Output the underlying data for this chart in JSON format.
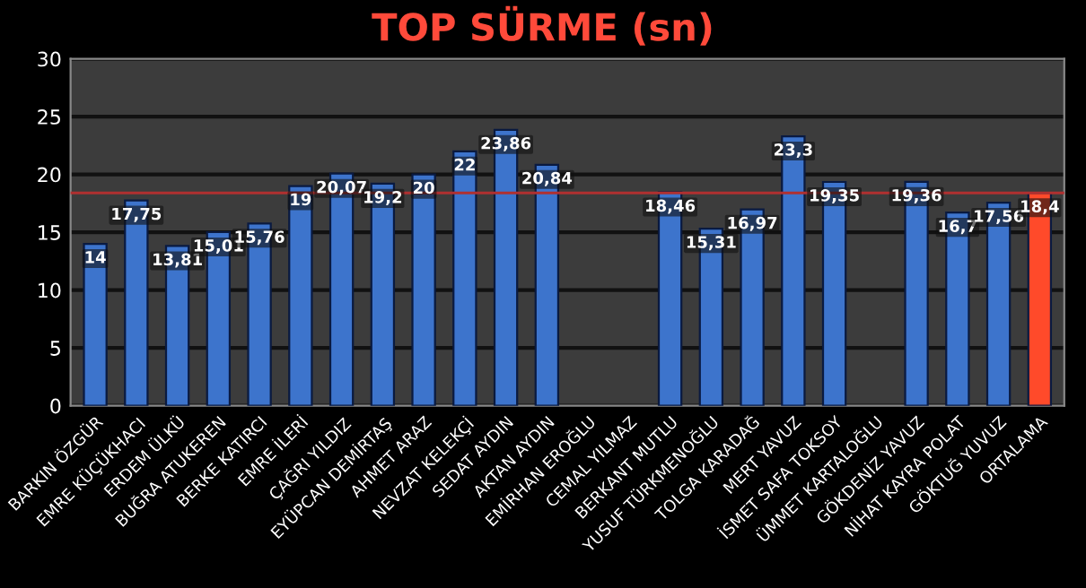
{
  "chart_data": {
    "type": "bar",
    "title": "TOP SÜRME (sn)",
    "categories": [
      "BARKIN ÖZGÜR",
      "EMRE KÜÇÜKHACI",
      "ERDEM ÜLKÜ",
      "BUĞRA ATUKEREN",
      "BERKE KATIRCI",
      "EMRE İLERİ",
      "ÇAĞRI YILDIZ",
      "EYÜPCAN DEMİRTAŞ",
      "AHMET ARAZ",
      "NEVZAT KELEKÇİ",
      "SEDAT AYDIN",
      "AKTAN AYDIN",
      "EMİRHAN EROĞLU",
      "CEMAL YILMAZ",
      "BERKANT MUTLU",
      "YUSUF TÜRKMENOĞLU",
      "TOLGA KARADAĞ",
      "MERT YAVUZ",
      "İSMET SAFA TOKSOY",
      "ÜMMET KARTALOĞLU",
      "GÖKDENİZ YAVUZ",
      "NİHAT KAYRA POLAT",
      "GÖKTUĞ YUVUZ",
      "ORTALAMA"
    ],
    "values": [
      14,
      17.75,
      13.81,
      15.01,
      15.76,
      19,
      20.07,
      19.2,
      20,
      22,
      23.86,
      20.84,
      null,
      null,
      18.46,
      15.31,
      16.97,
      23.3,
      19.35,
      null,
      19.36,
      16.7,
      17.56,
      18.4
    ],
    "value_labels": [
      "14",
      "17,75",
      "13,81",
      "15,01",
      "15,76",
      "19",
      "20,07",
      "19,2",
      "20",
      "22",
      "23,86",
      "20,84",
      null,
      null,
      "18,46",
      "15,31",
      "16,97",
      "23,3",
      "19,35",
      null,
      "19,36",
      "16,7",
      "17,56",
      "18,4"
    ],
    "colors": [
      "#3d74cc",
      "#3d74cc",
      "#3d74cc",
      "#3d74cc",
      "#3d74cc",
      "#3d74cc",
      "#3d74cc",
      "#3d74cc",
      "#3d74cc",
      "#3d74cc",
      "#3d74cc",
      "#3d74cc",
      "#3d74cc",
      "#3d74cc",
      "#3d74cc",
      "#3d74cc",
      "#3d74cc",
      "#3d74cc",
      "#3d74cc",
      "#3d74cc",
      "#3d74cc",
      "#3d74cc",
      "#3d74cc",
      "#ff4a2a"
    ],
    "ylim": [
      0,
      30
    ],
    "yticks": [
      0,
      5,
      10,
      15,
      20,
      25,
      30
    ],
    "grid": "y",
    "ref_lines": [
      {
        "axis": "y",
        "value": 18.4,
        "color": "#b03030"
      }
    ]
  }
}
